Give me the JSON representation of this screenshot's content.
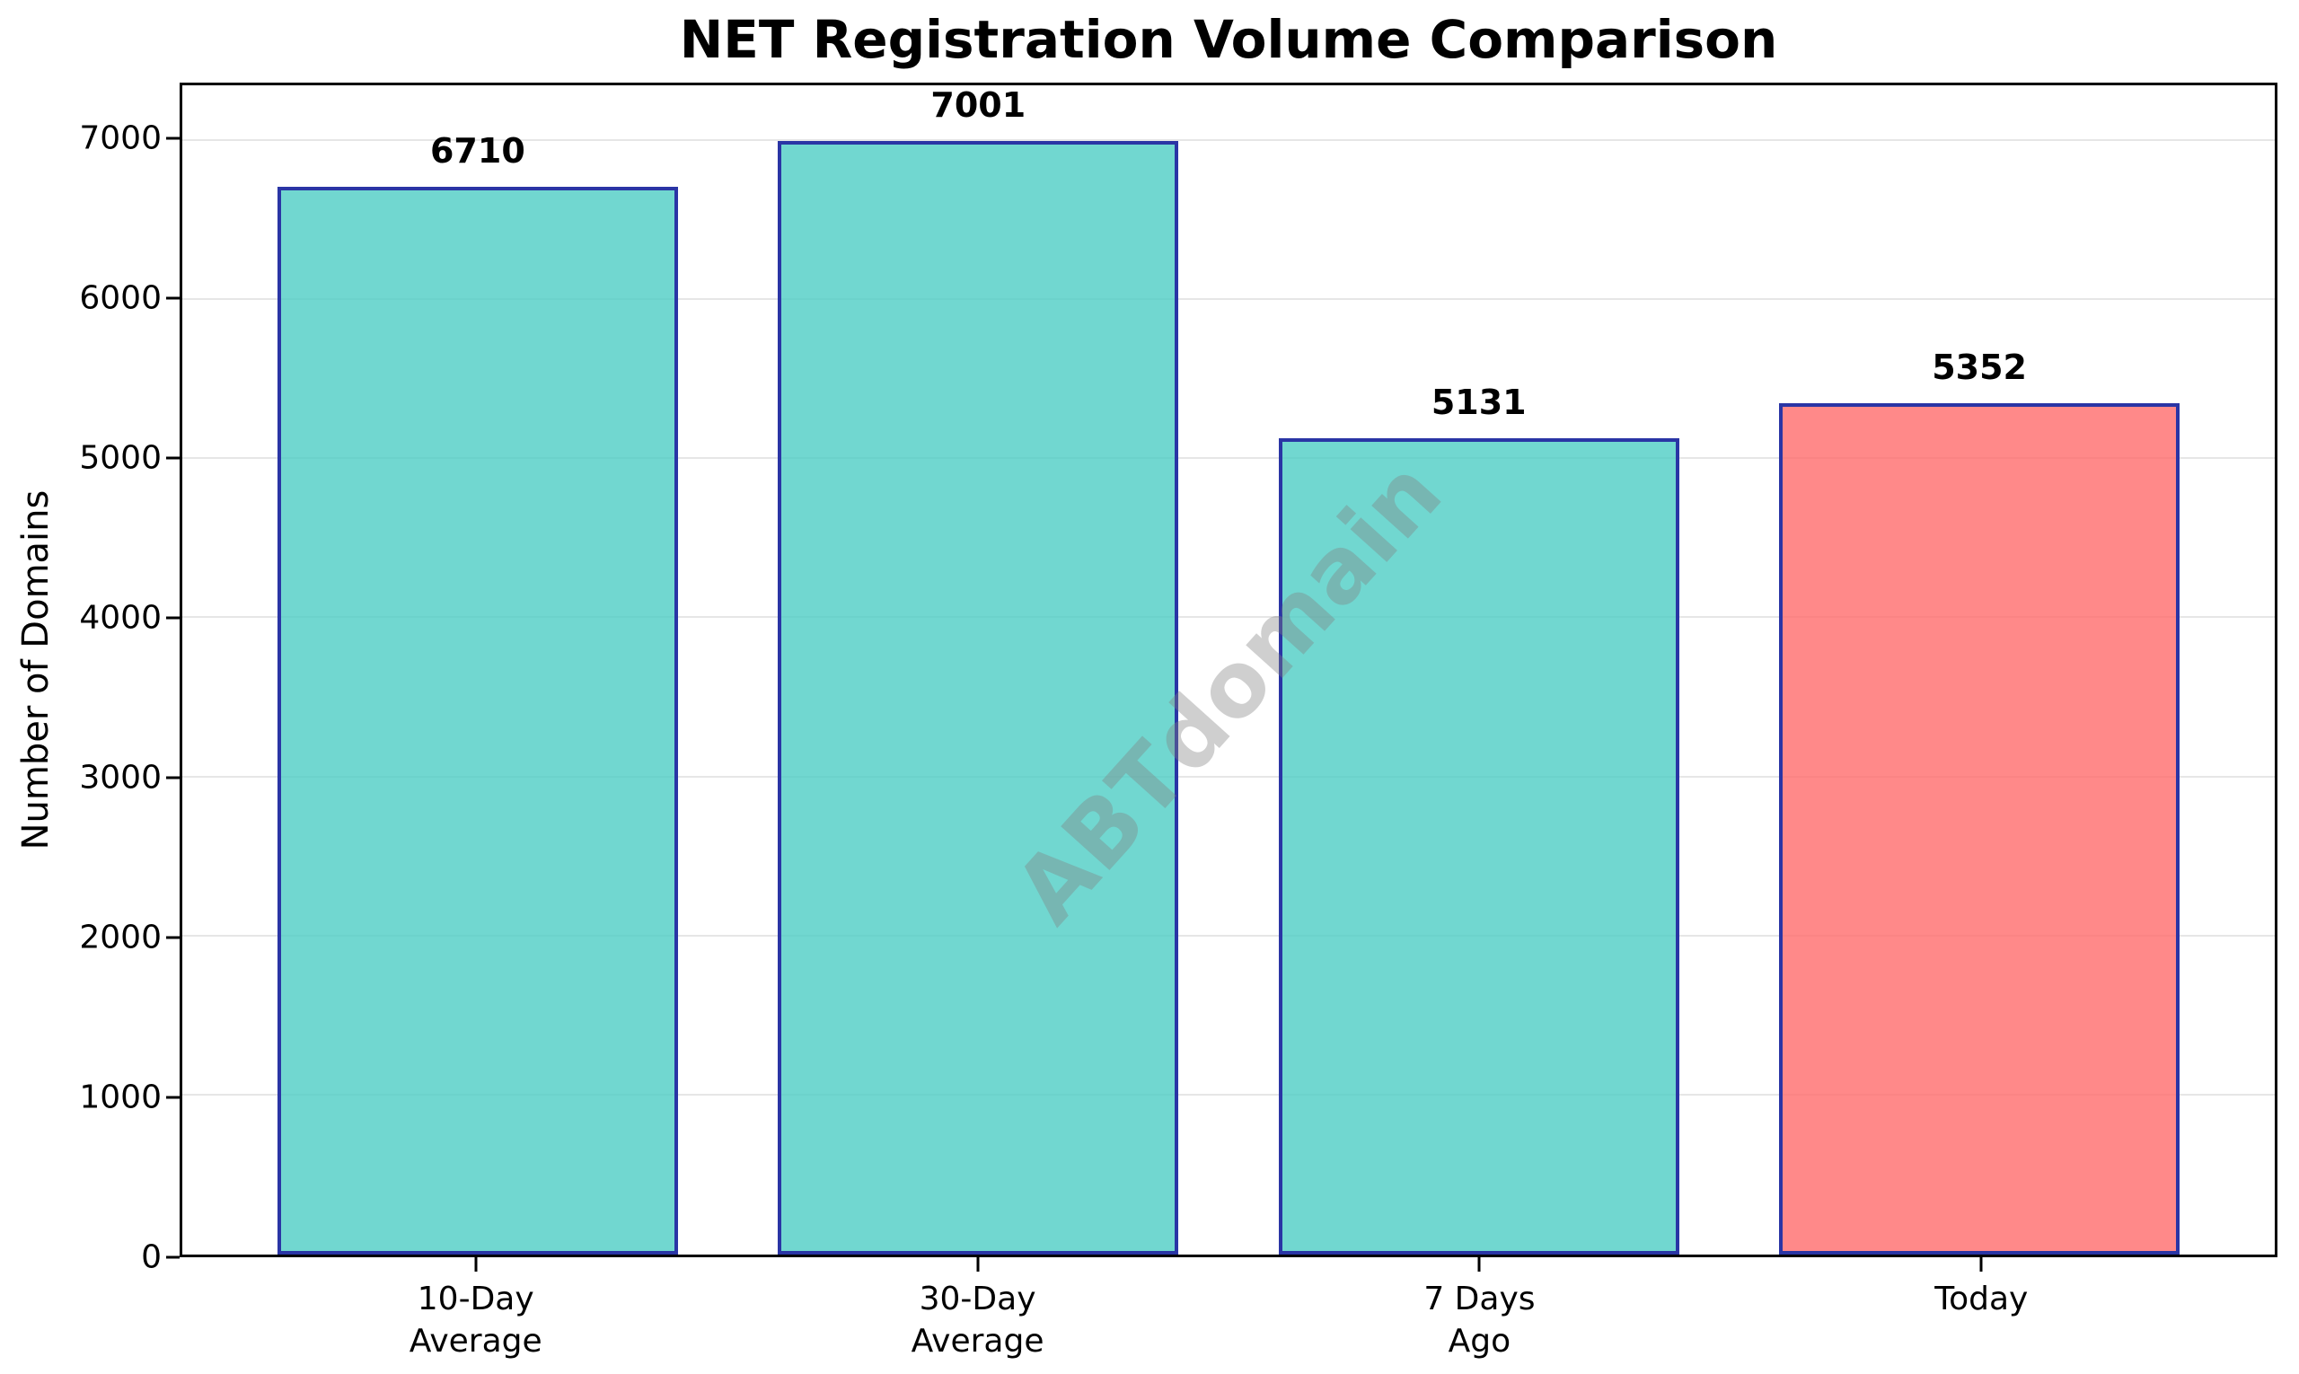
{
  "title": "NET Registration Volume Comparison",
  "watermark": "ABTdomain",
  "chart_data": {
    "type": "bar",
    "title": "NET Registration Volume Comparison",
    "xlabel": "",
    "ylabel": "Number of Domains",
    "categories": [
      "10-Day\nAverage",
      "30-Day\nAverage",
      "7 Days\nAgo",
      "Today"
    ],
    "values": [
      6710,
      7001,
      5131,
      5352
    ],
    "bar_labels": [
      "6710",
      "7001",
      "5131",
      "5352"
    ],
    "bar_colors": [
      "#4ECDC4",
      "#4ECDC4",
      "#4ECDC4",
      "#FF6B6B"
    ],
    "fill_alpha": 0.8,
    "edge_color": "#2A35A5",
    "ylim": [
      0,
      7350
    ],
    "yticks": [
      0,
      1000,
      2000,
      3000,
      4000,
      5000,
      6000,
      7000
    ],
    "grid": true,
    "grid_color": "#e6e6e6",
    "legend": "none",
    "watermark": "ABTdomain",
    "background": "#ffffff",
    "text_color": "#000000"
  }
}
